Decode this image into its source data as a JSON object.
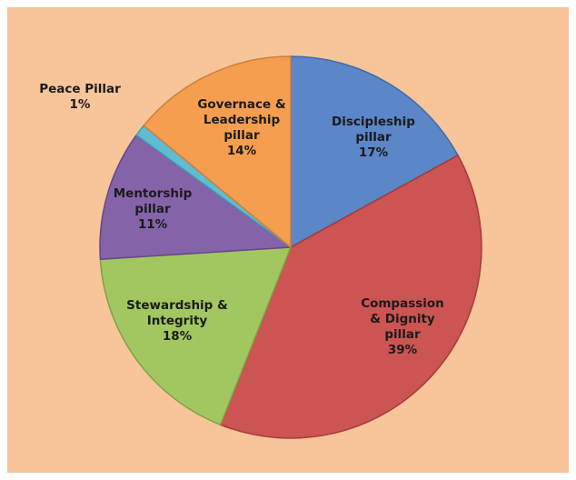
{
  "chart_data": {
    "type": "pie",
    "title": "",
    "slices": [
      {
        "label": [
          "Discipleship",
          "pillar"
        ],
        "value": 17,
        "display": "17%",
        "color": "#5b86c8",
        "edge": "#3f6aa8"
      },
      {
        "label": [
          "Compassion",
          "& Dignity",
          "pillar"
        ],
        "value": 39,
        "display": "39%",
        "color": "#cc5452",
        "edge": "#a63b3a"
      },
      {
        "label": [
          "Stewardship &",
          "Integrity"
        ],
        "value": 18,
        "display": "18%",
        "color": "#a2c760",
        "edge": "#7fa245"
      },
      {
        "label": [
          "Mentorship",
          "pillar"
        ],
        "value": 11,
        "display": "11%",
        "color": "#8463a9",
        "edge": "#654788"
      },
      {
        "label": [
          "Peace Pillar"
        ],
        "value": 1,
        "display": "1%",
        "color": "#5fbcd1",
        "edge": "#3f9bb0"
      },
      {
        "label": [
          "Governace &",
          "Leadership",
          "pillar"
        ],
        "value": 14,
        "display": "14%",
        "color": "#f59e4f",
        "edge": "#cf7f37"
      }
    ]
  }
}
